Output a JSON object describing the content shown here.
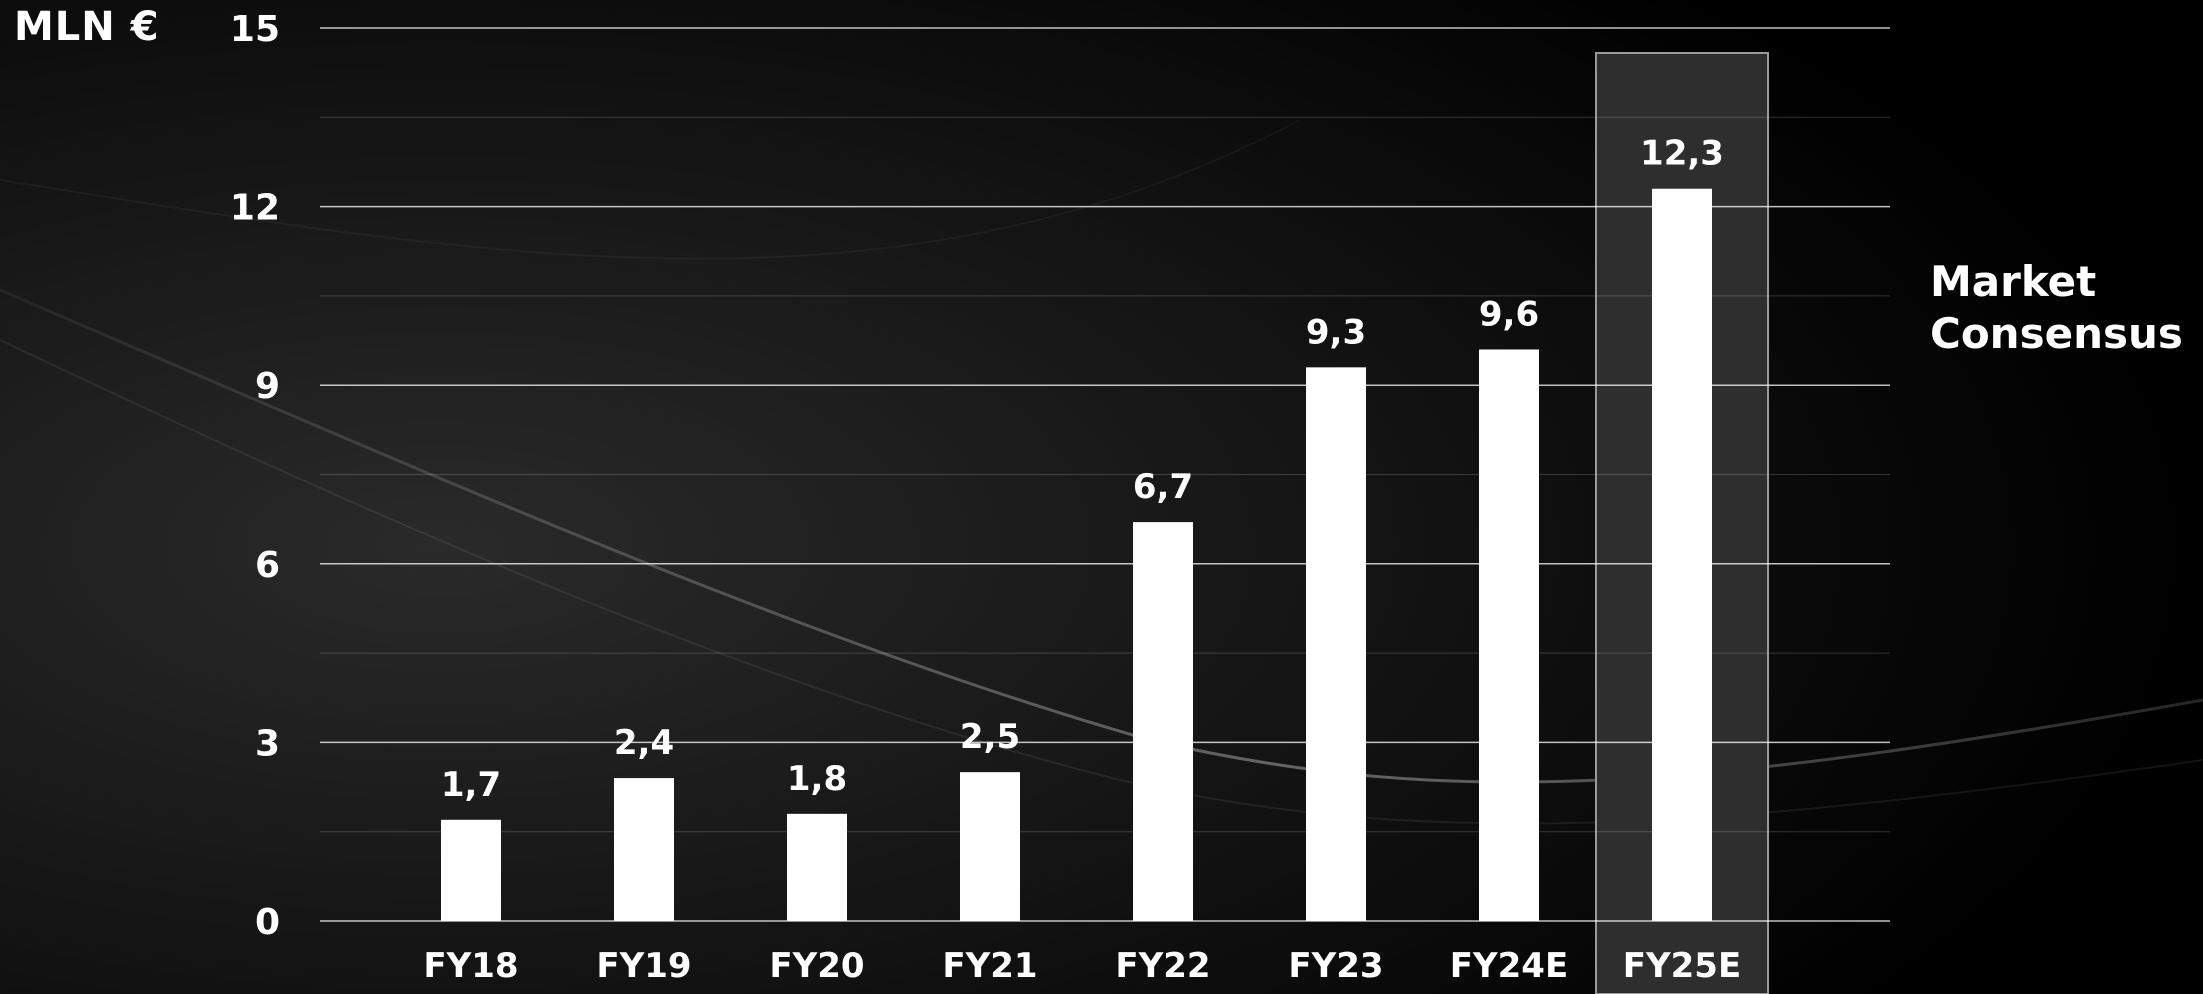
{
  "chart_data": {
    "type": "bar",
    "ylabel": "MLN €",
    "categories": [
      "FY18",
      "FY19",
      "FY20",
      "FY21",
      "FY22",
      "FY23",
      "FY24E",
      "FY25E"
    ],
    "values": [
      1.7,
      2.4,
      1.8,
      2.5,
      6.7,
      9.3,
      9.6,
      12.3
    ],
    "data_labels": [
      "1,7",
      "2,4",
      "1,8",
      "2,5",
      "6,7",
      "9,3",
      "9,6",
      "12,3"
    ],
    "ylim": [
      0,
      15
    ],
    "yticks": [
      0,
      3,
      6,
      9,
      12,
      15
    ],
    "grid": true,
    "bar_color": "#ffffff",
    "highlight": {
      "category": "FY25E",
      "label": "Market\nConsensus",
      "fill": "#2e2e2e",
      "border": "#9a9a9a"
    }
  }
}
